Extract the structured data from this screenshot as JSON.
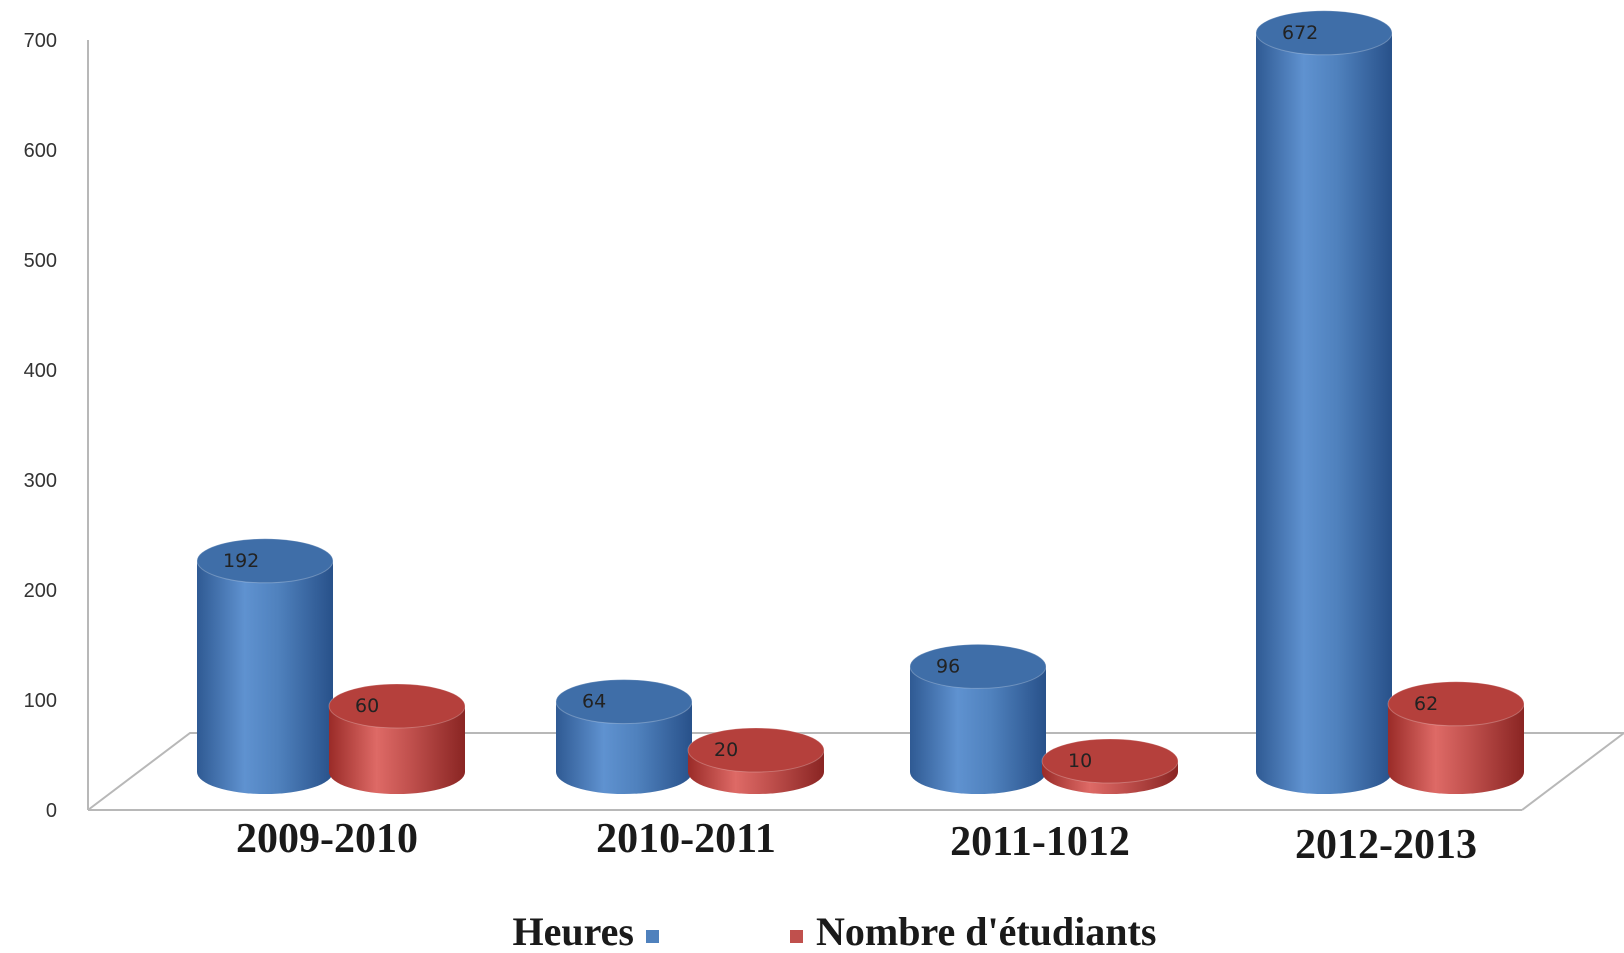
{
  "chart_data": {
    "type": "bar",
    "style": "3d-cylinder",
    "categories": [
      "2009-2010",
      "2010-2011",
      "2011-1012",
      "2012-2013"
    ],
    "series": [
      {
        "name": "Heures",
        "values": [
          192,
          64,
          96,
          672
        ],
        "color": "#4f81bd"
      },
      {
        "name": "Nombre d'étudiants",
        "values": [
          60,
          20,
          10,
          62
        ],
        "color": "#c0504d"
      }
    ],
    "data_labels": {
      "Heures": [
        "192",
        "64",
        "96",
        "672"
      ],
      "Nombre d'étudiants": [
        "60",
        "20",
        "10",
        "62"
      ]
    },
    "yticks": [
      0,
      100,
      200,
      300,
      400,
      500,
      600,
      700
    ],
    "ylim": [
      0,
      700
    ],
    "grid": false,
    "legend": "bottom",
    "legend_labels": [
      "Heures",
      "Nombre d'étudiants"
    ]
  }
}
